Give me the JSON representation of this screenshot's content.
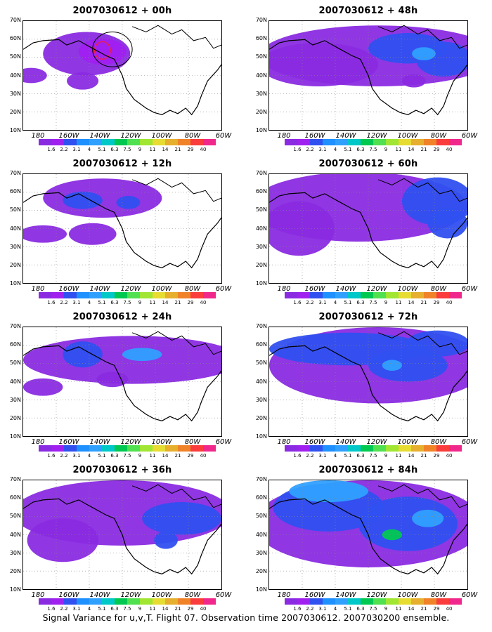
{
  "panels": [
    {
      "title": "2007030612 + 00h",
      "blobs": [
        [
          0.32,
          0.3,
          0.22,
          0.2,
          "#8a2be2"
        ],
        [
          0.4,
          0.28,
          0.12,
          0.12,
          "#a020f0"
        ],
        [
          0.04,
          0.5,
          0.08,
          0.07,
          "#8a2be2"
        ],
        [
          0.3,
          0.55,
          0.08,
          0.08,
          "#8a2be2"
        ]
      ],
      "ellipse": true
    },
    {
      "title": "2007030612 + 48h",
      "blobs": [
        [
          0.55,
          0.32,
          0.6,
          0.28,
          "#8a2be2"
        ],
        [
          0.25,
          0.4,
          0.3,
          0.2,
          "#8a2be2"
        ],
        [
          0.7,
          0.25,
          0.2,
          0.14,
          "#3050f0"
        ],
        [
          0.88,
          0.35,
          0.14,
          0.16,
          "#3050f0"
        ],
        [
          0.78,
          0.3,
          0.06,
          0.06,
          "#30a0ff"
        ],
        [
          0.73,
          0.55,
          0.06,
          0.06,
          "#8a2be2"
        ]
      ]
    },
    {
      "title": "2007030612 + 12h",
      "blobs": [
        [
          0.4,
          0.22,
          0.3,
          0.18,
          "#8a2be2"
        ],
        [
          0.3,
          0.24,
          0.1,
          0.08,
          "#3050f0"
        ],
        [
          0.53,
          0.26,
          0.06,
          0.06,
          "#3050f0"
        ],
        [
          0.1,
          0.55,
          0.12,
          0.08,
          "#8a2be2"
        ],
        [
          0.35,
          0.55,
          0.12,
          0.1,
          "#8a2be2"
        ]
      ]
    },
    {
      "title": "2007030612 + 60h",
      "blobs": [
        [
          0.45,
          0.3,
          0.55,
          0.32,
          "#8a2be2"
        ],
        [
          0.15,
          0.5,
          0.18,
          0.25,
          "#8a2be2"
        ],
        [
          0.85,
          0.25,
          0.18,
          0.22,
          "#3050f0"
        ],
        [
          0.9,
          0.45,
          0.1,
          0.14,
          "#3050f0"
        ]
      ]
    },
    {
      "title": "2007030612 + 24h",
      "blobs": [
        [
          0.55,
          0.3,
          0.55,
          0.22,
          "#8a2be2"
        ],
        [
          0.3,
          0.25,
          0.1,
          0.12,
          "#3050f0"
        ],
        [
          0.6,
          0.25,
          0.1,
          0.06,
          "#30a0ff"
        ],
        [
          0.1,
          0.55,
          0.1,
          0.08,
          "#8a2be2"
        ],
        [
          0.45,
          0.48,
          0.08,
          0.07,
          "#8a2be2"
        ]
      ]
    },
    {
      "title": "2007030612 + 72h",
      "blobs": [
        [
          0.55,
          0.35,
          0.55,
          0.35,
          "#8a2be2"
        ],
        [
          0.4,
          0.2,
          0.4,
          0.15,
          "#3050f0"
        ],
        [
          0.7,
          0.35,
          0.2,
          0.15,
          "#3050f0"
        ],
        [
          0.85,
          0.15,
          0.16,
          0.12,
          "#3050f0"
        ],
        [
          0.62,
          0.35,
          0.05,
          0.05,
          "#30a0ff"
        ]
      ]
    },
    {
      "title": "2007030612 + 36h",
      "blobs": [
        [
          0.5,
          0.3,
          0.55,
          0.3,
          "#8a2be2"
        ],
        [
          0.8,
          0.35,
          0.2,
          0.15,
          "#3050f0"
        ],
        [
          0.2,
          0.55,
          0.18,
          0.2,
          "#8a2be2"
        ],
        [
          0.72,
          0.55,
          0.06,
          0.08,
          "#3050f0"
        ]
      ]
    },
    {
      "title": "2007030612 + 84h",
      "blobs": [
        [
          0.5,
          0.4,
          0.58,
          0.4,
          "#8a2be2"
        ],
        [
          0.3,
          0.25,
          0.28,
          0.22,
          "#3050f0"
        ],
        [
          0.7,
          0.4,
          0.25,
          0.25,
          "#3050f0"
        ],
        [
          0.3,
          0.1,
          0.2,
          0.1,
          "#30a0ff"
        ],
        [
          0.8,
          0.35,
          0.08,
          0.08,
          "#30a0ff"
        ],
        [
          0.62,
          0.5,
          0.05,
          0.05,
          "#00c850"
        ]
      ]
    }
  ],
  "lat_labels": [
    "70N",
    "60N",
    "50N",
    "40N",
    "30N",
    "20N",
    "10N"
  ],
  "lon_labels": [
    "180",
    "160W",
    "140W",
    "120W",
    "100W",
    "80W",
    "60W"
  ],
  "colorbar": {
    "colors": [
      "#8a2be2",
      "#a020f0",
      "#3050f0",
      "#1e90ff",
      "#30a0ff",
      "#00c8c8",
      "#00c850",
      "#50e050",
      "#a0e632",
      "#e6dc32",
      "#e6af2d",
      "#f08228",
      "#fa3c3c",
      "#f0288c"
    ],
    "labels": [
      "1.6",
      "2.2",
      "3.1",
      "4",
      "5.1",
      "6.3",
      "7.5",
      "9",
      "11",
      "14",
      "21",
      "29",
      "40"
    ]
  },
  "caption": "Signal Variance for u,v,T. Flight 07. Observation time 2007030612. 2007030200 ensemble."
}
